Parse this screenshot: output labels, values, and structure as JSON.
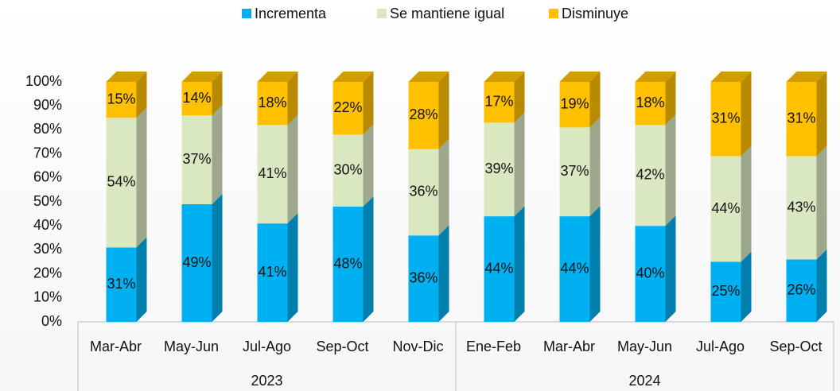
{
  "chart_data": {
    "type": "bar3d_stacked",
    "categories": [
      "Mar-Abr",
      "May-Jun",
      "Jul-Ago",
      "Sep-Oct",
      "Nov-Dic",
      "Ene-Feb",
      "Mar-Abr",
      "May-Jun",
      "Jul-Ago",
      "Sep-Oct"
    ],
    "category_groups": [
      "2023",
      "2024"
    ],
    "series": [
      {
        "name": "Incrementa",
        "color": "#00b0f0",
        "values": [
          31,
          49,
          41,
          48,
          36,
          44,
          44,
          40,
          25,
          26
        ],
        "value_labels": [
          "31%",
          "49%",
          "41%",
          "48%",
          "36%",
          "44%",
          "44%",
          "40%",
          "25%",
          "26%"
        ]
      },
      {
        "name": "Se mantiene igual",
        "color": "#d9e8c1",
        "values": [
          54,
          37,
          41,
          30,
          36,
          39,
          37,
          42,
          44,
          43
        ],
        "value_labels": [
          "54%",
          "37%",
          "41%",
          "30%",
          "36%",
          "39%",
          "37%",
          "42%",
          "44%",
          "43%"
        ]
      },
      {
        "name": "Disminuye",
        "color": "#ffc000",
        "values": [
          15,
          14,
          18,
          22,
          28,
          17,
          19,
          18,
          31,
          31
        ],
        "value_labels": [
          "15%",
          "14%",
          "18%",
          "22%",
          "28%",
          "17%",
          "19%",
          "18%",
          "31%",
          "31%"
        ]
      }
    ],
    "ylim": [
      0,
      100
    ],
    "yticks": [
      {
        "value": 0,
        "label": "0%"
      },
      {
        "value": 10,
        "label": "10%"
      },
      {
        "value": 20,
        "label": "20%"
      },
      {
        "value": 30,
        "label": "30%"
      },
      {
        "value": 40,
        "label": "40%"
      },
      {
        "value": 50,
        "label": "50%"
      },
      {
        "value": 60,
        "label": "60%"
      },
      {
        "value": 70,
        "label": "70%"
      },
      {
        "value": 80,
        "label": "80%"
      },
      {
        "value": 90,
        "label": "90%"
      },
      {
        "value": 100,
        "label": "100%"
      }
    ],
    "legend": "top"
  }
}
